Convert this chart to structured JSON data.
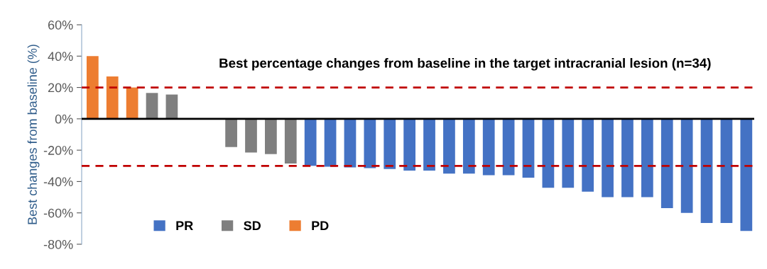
{
  "chart_data": {
    "type": "bar",
    "title": "Best percentage changes from baseline in the target intracranial lesion (n=34)",
    "ylabel": "Best changes from baseline (%)",
    "categories": [
      null,
      null,
      null,
      null,
      null,
      null,
      null,
      null,
      null,
      null,
      null,
      null,
      null,
      null,
      null,
      null,
      null,
      null,
      null,
      null,
      null,
      null,
      null,
      null,
      null,
      null,
      null,
      null,
      null,
      null,
      null,
      null,
      null,
      null
    ],
    "series": [
      {
        "name": "PR",
        "color": "#4472c4",
        "values": [
          null,
          null,
          null,
          null,
          null,
          null,
          null,
          null,
          null,
          null,
          null,
          -30,
          -30.5,
          -31,
          -31.5,
          -32,
          -33,
          -33,
          -35,
          -35,
          -36,
          -36,
          -37.5,
          -44,
          -44,
          -46.5,
          -50,
          -50,
          -50,
          -57,
          -60,
          -66.5,
          -66.5,
          -71.5
        ]
      },
      {
        "name": "SD",
        "color": "#7f7f7f",
        "values": [
          null,
          null,
          null,
          16.5,
          15.5,
          0,
          0,
          -18,
          -21.5,
          -22.5,
          -28.5,
          null,
          null,
          null,
          null,
          null,
          null,
          null,
          null,
          null,
          null,
          null,
          null,
          null,
          null,
          null,
          null,
          null,
          null,
          null,
          null,
          null,
          null,
          null
        ]
      },
      {
        "name": "PD",
        "color": "#ed7d31",
        "values": [
          40,
          27,
          20,
          null,
          null,
          null,
          null,
          null,
          null,
          null,
          null,
          null,
          null,
          null,
          null,
          null,
          null,
          null,
          null,
          null,
          null,
          null,
          null,
          null,
          null,
          null,
          null,
          null,
          null,
          null,
          null,
          null,
          null,
          null
        ]
      }
    ],
    "ylim": [
      -80,
      60
    ],
    "yticks": [
      {
        "value": -80,
        "label": "-80%"
      },
      {
        "value": -60,
        "label": "-60%"
      },
      {
        "value": -40,
        "label": "-40%"
      },
      {
        "value": -20,
        "label": "-20%"
      },
      {
        "value": 0,
        "label": "0%"
      },
      {
        "value": 20,
        "label": "20%"
      },
      {
        "value": 40,
        "label": "40%"
      },
      {
        "value": 60,
        "label": "60%"
      }
    ],
    "ref_lines": [
      {
        "axis": "y",
        "value": 20,
        "color": "#c00000",
        "line_style": "dashed"
      },
      {
        "axis": "y",
        "value": -30,
        "color": "#c00000",
        "line_style": "dashed"
      }
    ],
    "grid": false,
    "legend": "bottom left",
    "tick_labels": "y"
  }
}
